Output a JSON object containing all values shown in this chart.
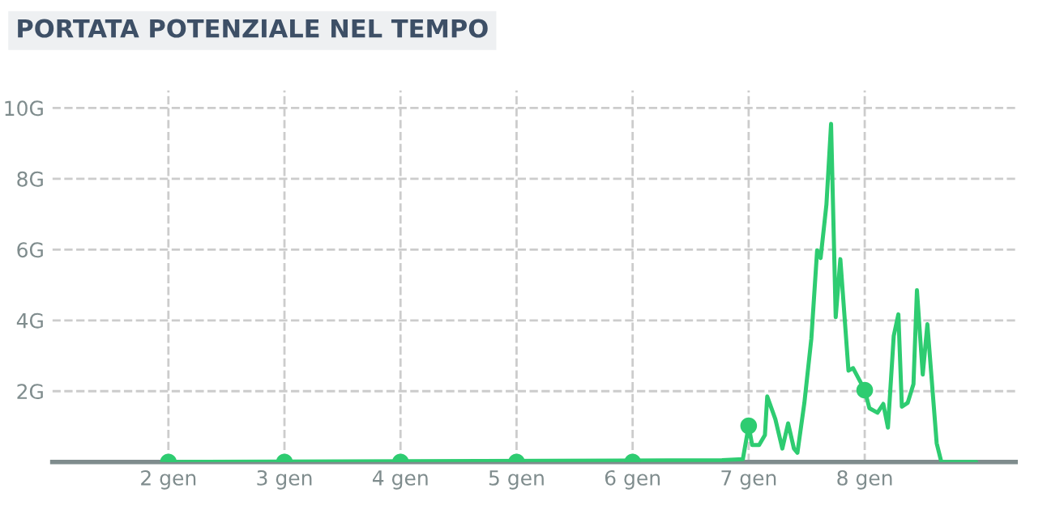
{
  "chart_data": {
    "type": "line",
    "title": "PORTATA POTENZIALE NEL TEMPO",
    "xlim": [
      1,
      9.3
    ],
    "xticks": [
      {
        "value": 2,
        "label": "2 gen"
      },
      {
        "value": 3,
        "label": "3 gen"
      },
      {
        "value": 4,
        "label": "4 gen"
      },
      {
        "value": 5,
        "label": "5 gen"
      },
      {
        "value": 6,
        "label": "6 gen"
      },
      {
        "value": 7,
        "label": "7 gen"
      },
      {
        "value": 8,
        "label": "8 gen"
      }
    ],
    "ylim": [
      0,
      10.5
    ],
    "yticks": [
      {
        "value": 2,
        "label": "2G"
      },
      {
        "value": 4,
        "label": "4G"
      },
      {
        "value": 6,
        "label": "6G"
      },
      {
        "value": 8,
        "label": "8G"
      },
      {
        "value": 10,
        "label": "10G"
      }
    ],
    "grid": true,
    "series": [
      {
        "color": "#2ecc71",
        "x": [
          2,
          6.77,
          6.95,
          7.0,
          7.03,
          7.09,
          7.14,
          7.16,
          7.23,
          7.29,
          7.34,
          7.39,
          7.42,
          7.48,
          7.54,
          7.59,
          7.62,
          7.67,
          7.71,
          7.75,
          7.79,
          7.86,
          7.9,
          8.0,
          8.04,
          8.11,
          8.16,
          8.2,
          8.25,
          8.29,
          8.32,
          8.37,
          8.42,
          8.45,
          8.5,
          8.54,
          8.62,
          8.66,
          8.96
        ],
        "values": [
          0,
          0.05,
          0.08,
          1.02,
          0.48,
          0.48,
          0.76,
          1.85,
          1.21,
          0.38,
          1.09,
          0.38,
          0.26,
          1.67,
          3.48,
          5.98,
          5.76,
          7.27,
          9.55,
          4.09,
          5.73,
          2.58,
          2.65,
          2.03,
          1.52,
          1.39,
          1.64,
          0.97,
          3.56,
          4.17,
          1.56,
          1.67,
          2.2,
          4.85,
          2.47,
          3.89,
          0.53,
          0,
          0
        ]
      },
      {
        "type": "scatter",
        "marker": "circle",
        "color": "#2ecc71",
        "x": [
          2,
          3,
          4,
          5,
          6,
          7,
          8
        ],
        "values": [
          0,
          0,
          0,
          0,
          0,
          1.02,
          2.03
        ]
      }
    ]
  }
}
